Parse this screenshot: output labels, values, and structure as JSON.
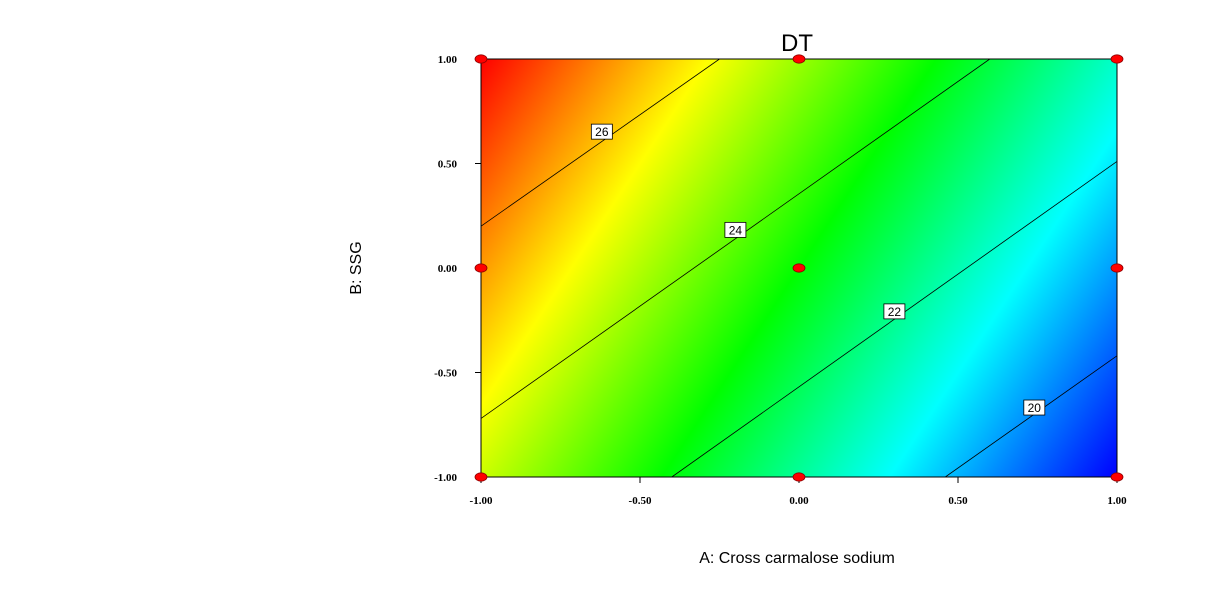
{
  "chart_data": {
    "type": "contour",
    "title": "DT",
    "xlabel": "A: Cross carmalose sodium",
    "ylabel": "B: SSG",
    "xlim": [
      -1.0,
      1.0
    ],
    "ylim": [
      -1.0,
      1.0
    ],
    "x_ticks": [
      "-1.00",
      "-0.50",
      "0.00",
      "0.50",
      "1.00"
    ],
    "y_ticks": [
      "-1.00",
      "-0.50",
      "0.00",
      "0.50",
      "1.00"
    ],
    "color_scale": [
      "#0000ff",
      "#00ffff",
      "#00ff00",
      "#ffff00",
      "#ff0000"
    ],
    "contours": [
      {
        "level": "26",
        "points": [
          [
            -1.0,
            0.2
          ],
          [
            -0.25,
            1.0
          ]
        ],
        "label_at": [
          -0.62,
          0.65
        ]
      },
      {
        "level": "24",
        "points": [
          [
            -1.0,
            -0.72
          ],
          [
            0.6,
            1.0
          ]
        ],
        "label_at": [
          -0.2,
          0.18
        ]
      },
      {
        "level": "22",
        "points": [
          [
            -0.4,
            -1.0
          ],
          [
            1.0,
            0.51
          ]
        ],
        "label_at": [
          0.3,
          -0.21
        ]
      },
      {
        "level": "20",
        "points": [
          [
            0.46,
            -1.0
          ],
          [
            1.0,
            -0.42
          ]
        ],
        "label_at": [
          0.74,
          -0.67
        ]
      }
    ],
    "design_points": [
      [
        -1.0,
        1.0
      ],
      [
        0.0,
        1.0
      ],
      [
        1.0,
        1.0
      ],
      [
        -1.0,
        0.0
      ],
      [
        0.0,
        0.0
      ],
      [
        1.0,
        0.0
      ],
      [
        -1.0,
        -1.0
      ],
      [
        0.0,
        -1.0
      ],
      [
        1.0,
        -1.0
      ]
    ],
    "design_point_color": "#ff0000"
  }
}
